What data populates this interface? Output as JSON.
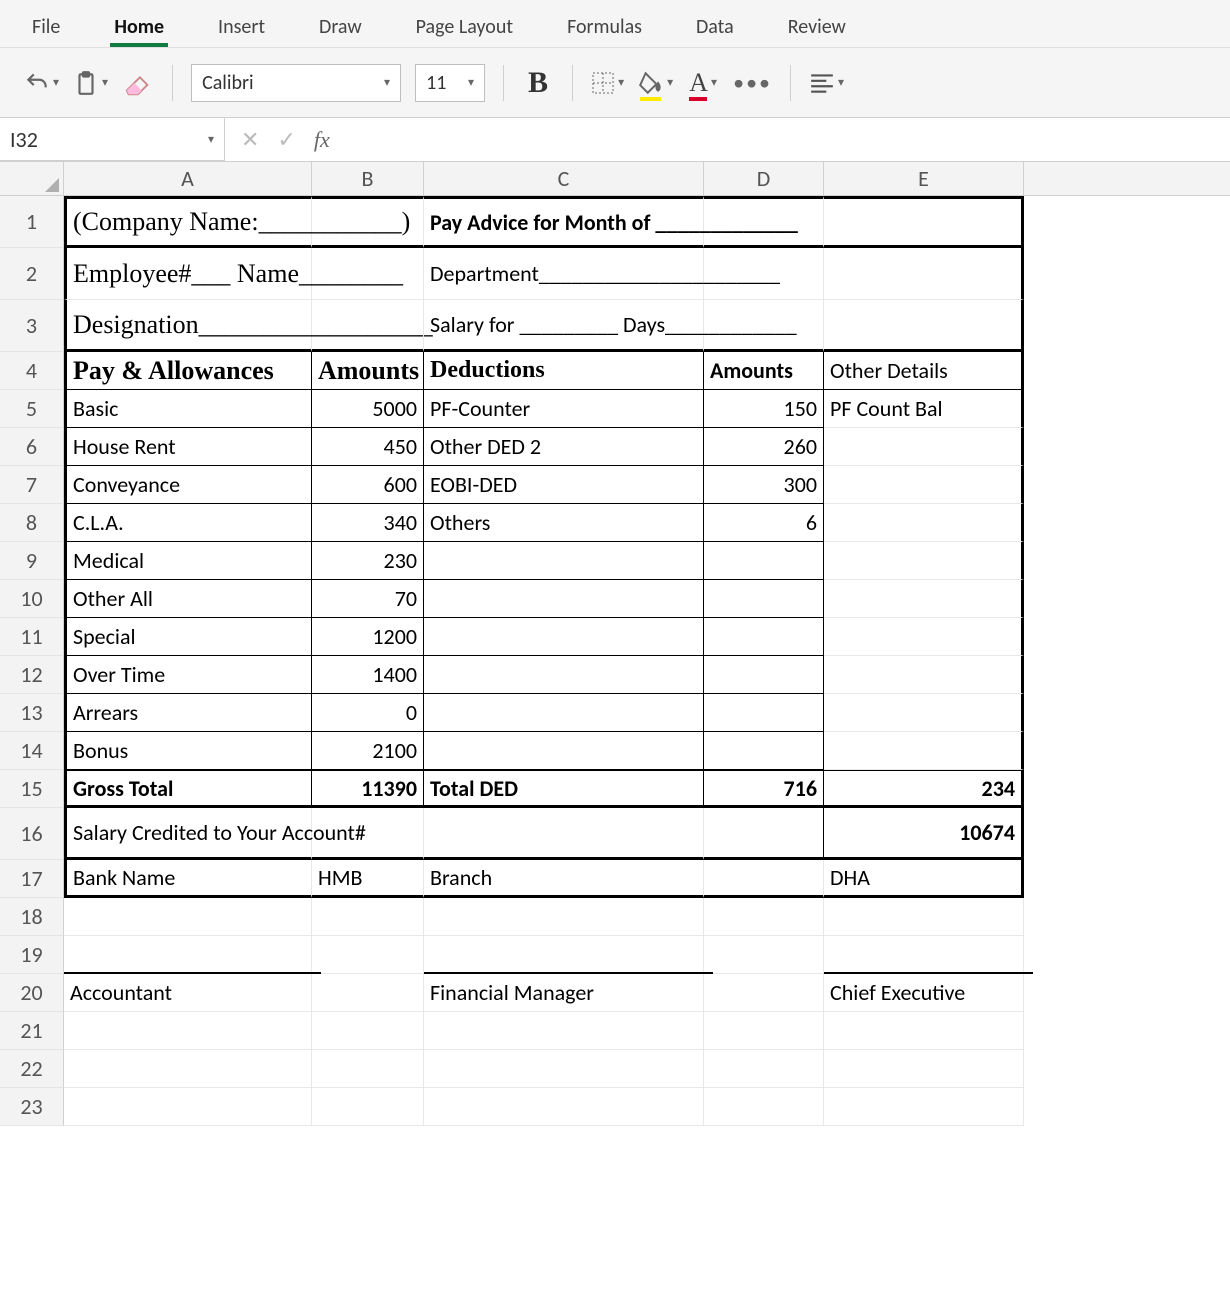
{
  "ribbon": {
    "tabs": [
      "File",
      "Home",
      "Insert",
      "Draw",
      "Page Layout",
      "Formulas",
      "Data",
      "Review"
    ],
    "active_tab_index": 1,
    "font_name": "Calibri",
    "font_size": "11"
  },
  "name_box": "I32",
  "columns": [
    "A",
    "B",
    "C",
    "D",
    "E"
  ],
  "row_numbers": [
    "1",
    "2",
    "3",
    "4",
    "5",
    "6",
    "7",
    "8",
    "9",
    "10",
    "11",
    "12",
    "13",
    "14",
    "15",
    "16",
    "17",
    "18",
    "19",
    "20",
    "21",
    "22",
    "23"
  ],
  "slip": {
    "row1_a": "(Company Name:___________)",
    "row1_c": "Pay Advice for Month of _____________",
    "row2_a": "Employee#___   Name________",
    "row2_c": "Department______________________",
    "row3_a": "Designation__________________",
    "row3_c": "Salary for _________ Days____________",
    "hdr_pay": "Pay & Allowances",
    "hdr_amt1": "Amounts",
    "hdr_ded": "Deductions",
    "hdr_amt2": "Amounts",
    "hdr_other": "Other Details",
    "rows": [
      {
        "a": "Basic",
        "b": "5000",
        "c": "PF-Counter",
        "d": "150",
        "e": "PF Count Bal"
      },
      {
        "a": "House Rent",
        "b": "450",
        "c": "Other DED 2",
        "d": "260",
        "e": ""
      },
      {
        "a": "Conveyance",
        "b": "600",
        "c": "EOBI-DED",
        "d": "300",
        "e": ""
      },
      {
        "a": "C.L.A.",
        "b": "340",
        "c": "Others",
        "d": "6",
        "e": ""
      },
      {
        "a": "Medical",
        "b": "230",
        "c": "",
        "d": "",
        "e": ""
      },
      {
        "a": "Other All",
        "b": "70",
        "c": "",
        "d": "",
        "e": ""
      },
      {
        "a": "Special",
        "b": "1200",
        "c": "",
        "d": "",
        "e": ""
      },
      {
        "a": "Over Time",
        "b": "1400",
        "c": "",
        "d": "",
        "e": ""
      },
      {
        "a": "Arrears",
        "b": "0",
        "c": "",
        "d": "",
        "e": ""
      },
      {
        "a": "Bonus",
        "b": "2100",
        "c": "",
        "d": "",
        "e": ""
      }
    ],
    "gross_label": "Gross Total",
    "gross_amt": "11390",
    "totded_label": "Total DED",
    "totded_amt": "716",
    "other_amt": "234",
    "credited_label": "Salary Credited to Your Account#",
    "credited_amt": "10674",
    "bank_label": "Bank Name",
    "bank_name": "HMB",
    "branch_label": "Branch",
    "branch_name": "DHA",
    "sig1": "Accountant",
    "sig2": "Financial Manager",
    "sig3": "Chief Executive"
  },
  "colors": {
    "ribbon_bg": "#f5f5f5",
    "accent_green": "#107c41",
    "highlight_yellow": "#ffeb00",
    "font_color_red": "#d9002a"
  }
}
